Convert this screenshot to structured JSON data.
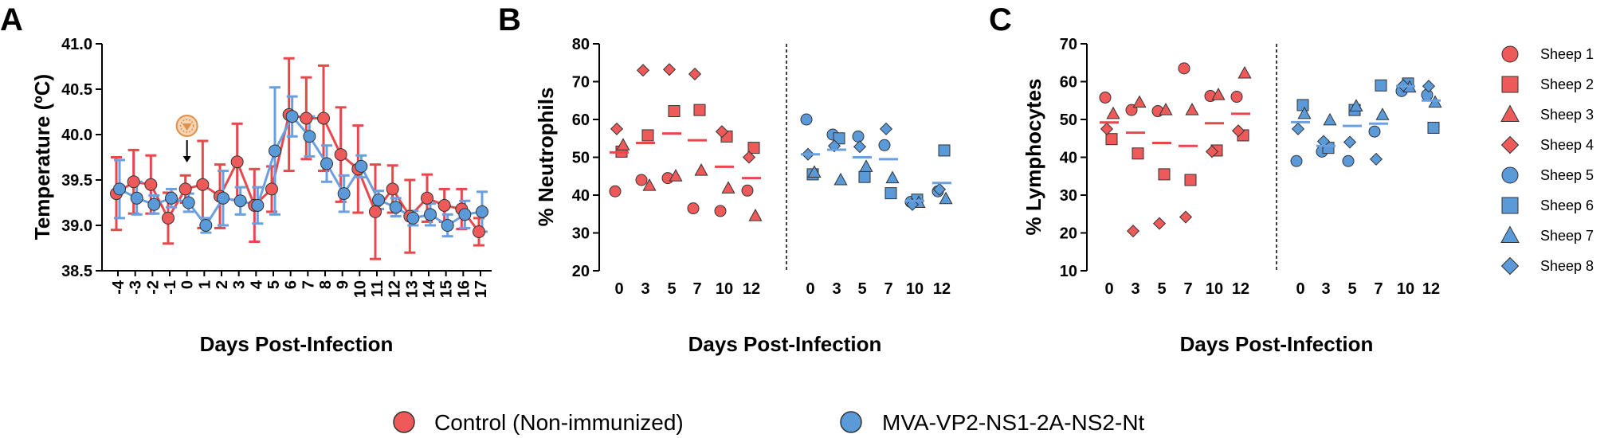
{
  "colors": {
    "control": "#ee5a5a",
    "control_line": "#e8484b",
    "mva": "#5b9ad8",
    "mva_line": "#6a9fe0",
    "outline": "#333333",
    "icon": "#e0904a"
  },
  "legend_bottom": [
    {
      "label": "Control (Non-immunized)",
      "group": "control"
    },
    {
      "label": "MVA-VP2-NS1-2A-NS2-Nt",
      "group": "mva"
    }
  ],
  "legend_right": [
    {
      "label": "Sheep 1",
      "group": "control",
      "shape": "circle"
    },
    {
      "label": "Sheep 2",
      "group": "control",
      "shape": "square"
    },
    {
      "label": "Sheep 3",
      "group": "control",
      "shape": "triangle"
    },
    {
      "label": "Sheep 4",
      "group": "control",
      "shape": "diamond"
    },
    {
      "label": "Sheep 5",
      "group": "mva",
      "shape": "circle"
    },
    {
      "label": "Sheep 6",
      "group": "mva",
      "shape": "square"
    },
    {
      "label": "Sheep 7",
      "group": "mva",
      "shape": "triangle"
    },
    {
      "label": "Sheep 8",
      "group": "mva",
      "shape": "diamond"
    }
  ],
  "chart_data": [
    {
      "panel": "A",
      "type": "line",
      "xlabel": "Days Post-Infection",
      "ylabel": "Temperature (ºC)",
      "ylim": [
        38.5,
        41.0
      ],
      "yticks": [
        "38.5",
        "39.0",
        "39.5",
        "40.0",
        "40.5",
        "41.0"
      ],
      "x": [
        -4,
        -3,
        -2,
        -1,
        0,
        1,
        2,
        3,
        4,
        5,
        6,
        7,
        8,
        9,
        10,
        11,
        12,
        13,
        14,
        15,
        16,
        17
      ],
      "annotation": "challenge-virus-icon at day 0",
      "series": [
        {
          "name": "Control (Non-immunized)",
          "group": "control",
          "values": [
            39.35,
            39.48,
            39.45,
            39.08,
            39.4,
            39.45,
            39.32,
            39.7,
            39.22,
            39.4,
            40.22,
            40.18,
            40.18,
            39.78,
            39.62,
            39.15,
            39.4,
            39.1,
            39.3,
            39.22,
            39.18,
            38.93
          ],
          "errors": [
            0.4,
            0.35,
            0.32,
            0.28,
            0.15,
            0.48,
            0.35,
            0.42,
            0.4,
            0.25,
            0.62,
            0.45,
            0.58,
            0.52,
            0.48,
            0.52,
            0.26,
            0.4,
            0.26,
            0.18,
            0.22,
            0.15
          ]
        },
        {
          "name": "MVA-VP2-NS1-2A-NS2-Nt",
          "group": "mva",
          "values": [
            39.4,
            39.3,
            39.23,
            39.3,
            39.25,
            39.0,
            39.3,
            39.27,
            39.22,
            39.82,
            40.2,
            39.98,
            39.68,
            39.35,
            39.65,
            39.28,
            39.2,
            39.08,
            39.12,
            39.0,
            39.12,
            39.15
          ],
          "errors": [
            0.32,
            0.18,
            0.1,
            0.1,
            0.1,
            0.08,
            0.3,
            0.15,
            0.2,
            0.7,
            0.22,
            0.22,
            0.2,
            0.2,
            0.12,
            0.1,
            0.1,
            0.08,
            0.12,
            0.12,
            0.15,
            0.22
          ]
        }
      ]
    },
    {
      "panel": "B",
      "type": "scatter",
      "xlabel": "Days Post-Infection",
      "ylabel": "% Neutrophils",
      "ylim": [
        20,
        80
      ],
      "yticks": [
        "20",
        "30",
        "40",
        "50",
        "60",
        "70",
        "80"
      ],
      "days": [
        "0",
        "3",
        "5",
        "7",
        "10",
        "12"
      ],
      "groups": [
        {
          "name": "Control (Non-immunized)",
          "group": "control",
          "means": [
            51.3,
            53.8,
            56.3,
            54.5,
            47.5,
            44.5
          ],
          "points": [
            {
              "sheep": "Sheep 1",
              "shape": "circle",
              "values": [
                41.0,
                44.0,
                44.5,
                36.5,
                35.8,
                41.2
              ]
            },
            {
              "sheep": "Sheep 2",
              "shape": "square",
              "values": [
                51.5,
                55.8,
                62.2,
                62.5,
                55.5,
                52.5
              ]
            },
            {
              "sheep": "Sheep 3",
              "shape": "triangle",
              "values": [
                53.2,
                42.5,
                45.0,
                46.5,
                41.8,
                34.5
              ]
            },
            {
              "sheep": "Sheep 4",
              "shape": "diamond",
              "values": [
                57.5,
                73.0,
                73.2,
                72.0,
                56.8,
                50.0
              ]
            }
          ]
        },
        {
          "name": "MVA-VP2-NS1-2A-NS2-Nt",
          "group": "mva",
          "means": [
            50.8,
            52.0,
            50.0,
            49.5,
            38.5,
            43.2
          ],
          "points": [
            {
              "sheep": "Sheep 5",
              "shape": "circle",
              "values": [
                60.0,
                56.0,
                55.5,
                53.2,
                38.2,
                41.0
              ]
            },
            {
              "sheep": "Sheep 6",
              "shape": "square",
              "values": [
                45.5,
                55.0,
                44.8,
                40.5,
                38.8,
                51.8
              ]
            },
            {
              "sheep": "Sheep 7",
              "shape": "triangle",
              "values": [
                46.0,
                44.0,
                47.5,
                44.5,
                38.0,
                39.0
              ]
            },
            {
              "sheep": "Sheep 8",
              "shape": "diamond",
              "values": [
                50.8,
                53.0,
                52.8,
                57.5,
                37.5,
                41.5
              ]
            }
          ]
        }
      ]
    },
    {
      "panel": "C",
      "type": "scatter",
      "xlabel": "Days Post-Infection",
      "ylabel": "% Lymphocytes",
      "ylim": [
        10,
        70
      ],
      "yticks": [
        "10",
        "20",
        "30",
        "40",
        "50",
        "60",
        "70"
      ],
      "days": [
        "0",
        "3",
        "5",
        "7",
        "10",
        "12"
      ],
      "groups": [
        {
          "name": "Control (Non-immunized)",
          "group": "control",
          "means": [
            49.2,
            46.5,
            43.8,
            43.0,
            49.0,
            51.5
          ],
          "points": [
            {
              "sheep": "Sheep 1",
              "shape": "circle",
              "values": [
                55.8,
                52.5,
                52.2,
                63.5,
                56.2,
                56.0
              ]
            },
            {
              "sheep": "Sheep 2",
              "shape": "square",
              "values": [
                44.8,
                41.0,
                35.5,
                34.0,
                41.8,
                45.8
              ]
            },
            {
              "sheep": "Sheep 3",
              "shape": "triangle",
              "values": [
                51.5,
                54.5,
                52.5,
                52.5,
                56.5,
                62.2
              ]
            },
            {
              "sheep": "Sheep 4",
              "shape": "diamond",
              "values": [
                47.5,
                20.5,
                22.5,
                24.2,
                41.5,
                47.0
              ]
            }
          ]
        },
        {
          "name": "MVA-VP2-NS1-2A-NS2-Nt",
          "group": "mva",
          "means": [
            49.3,
            43.0,
            48.3,
            48.9,
            58.8,
            55.0
          ],
          "points": [
            {
              "sheep": "Sheep 5",
              "shape": "circle",
              "values": [
                39.0,
                41.5,
                39.0,
                46.8,
                57.5,
                56.5
              ]
            },
            {
              "sheep": "Sheep 6",
              "shape": "square",
              "values": [
                53.8,
                42.5,
                52.5,
                59.0,
                59.5,
                47.8
              ]
            },
            {
              "sheep": "Sheep 7",
              "shape": "triangle",
              "values": [
                51.5,
                49.8,
                53.5,
                51.2,
                58.5,
                54.5
              ]
            },
            {
              "sheep": "Sheep 8",
              "shape": "diamond",
              "values": [
                47.5,
                44.2,
                44.0,
                39.5,
                59.0,
                58.8
              ]
            }
          ]
        }
      ]
    }
  ]
}
